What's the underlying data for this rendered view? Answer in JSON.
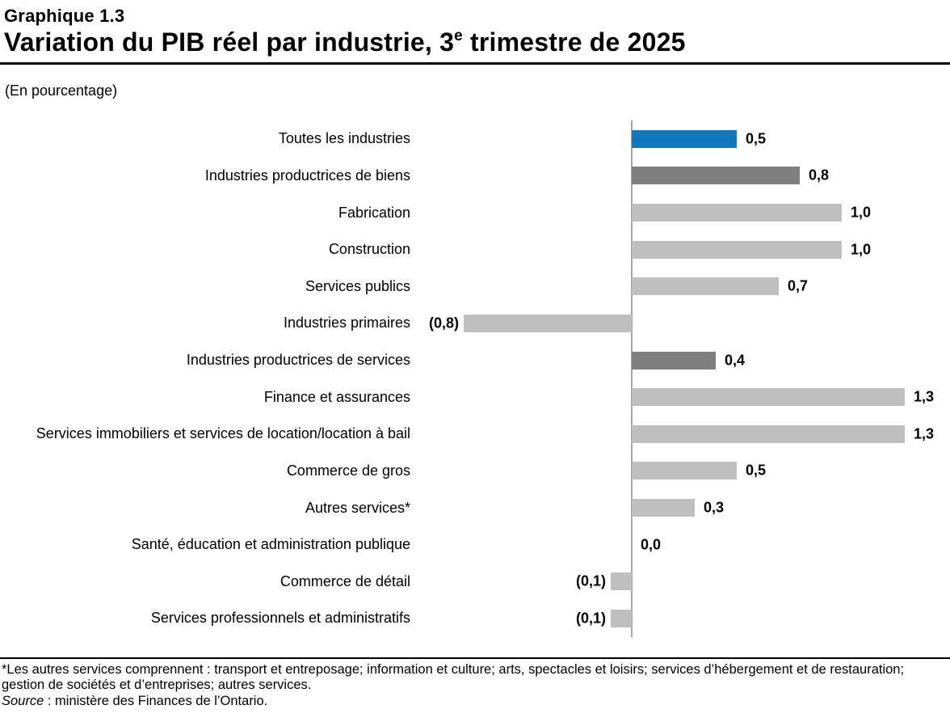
{
  "header": {
    "kicker": "Graphique 1.3",
    "title_prefix": "Variation du PIB réel par industrie, 3",
    "title_superscript": "e",
    "title_suffix": " trimestre de 2025",
    "unit_note": "(En pourcentage)"
  },
  "chart_data": {
    "type": "bar",
    "orientation": "horizontal",
    "title": "Variation du PIB réel par industrie, 3e trimestre de 2025",
    "xlabel": "En pourcentage",
    "ylabel": "",
    "xlim": [
      -1.05,
      1.5
    ],
    "grid": false,
    "legend": false,
    "categories": [
      "Toutes les industries",
      "Industries productrices de biens",
      "Fabrication",
      "Construction",
      "Services publics",
      "Industries primaires",
      "Industries productrices de services",
      "Finance et assurances",
      "Services immobiliers et services de location/location à bail",
      "Commerce de gros",
      "Autres services*",
      "Santé, éducation et administration publique",
      "Commerce de détail",
      "Services professionnels et administratifs"
    ],
    "values": [
      0.5,
      0.8,
      1.0,
      1.0,
      0.7,
      -0.8,
      0.4,
      1.3,
      1.3,
      0.5,
      0.3,
      0.0,
      -0.1,
      -0.1
    ],
    "value_labels": [
      "0,5",
      "0,8",
      "1,0",
      "1,0",
      "0,7",
      "(0,8)",
      "0,4",
      "1,3",
      "1,3",
      "0,5",
      "0,3",
      "0,0",
      "(0,1)",
      "(0,1)"
    ],
    "bar_color_roles": [
      "highlight",
      "subtotal",
      "detail",
      "detail",
      "detail",
      "detail",
      "subtotal",
      "detail",
      "detail",
      "detail",
      "detail",
      "detail",
      "detail",
      "detail"
    ],
    "colors": {
      "highlight": "#1278BE",
      "subtotal": "#7F7F7F",
      "detail": "#BFBFBF",
      "axis": "#A6A6A6"
    }
  },
  "footer": {
    "footnote_lines": [
      "*Les autres services comprennent : transport et entreposage; information et culture; arts, spectacles et loisirs; services d’hébergement et de restauration;",
      "gestion de sociétés et d’entreprises; autres services."
    ],
    "source_label": "Source",
    "source_text": " : ministère des Finances de l’Ontario."
  }
}
